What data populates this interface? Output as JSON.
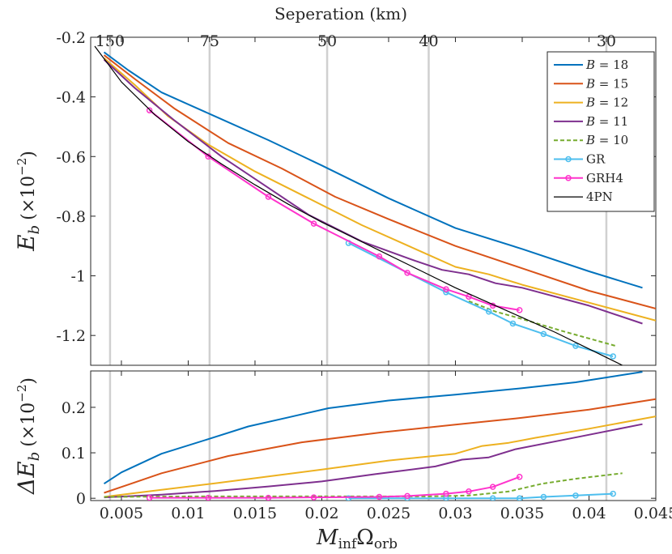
{
  "chart_data": {
    "type": "line",
    "title": "Seperation (km)",
    "top_axis": {
      "label": "Seperation (km)",
      "ticks": [
        {
          "label": "150",
          "x": 0.00415
        },
        {
          "label": "75",
          "x": 0.0116
        },
        {
          "label": "50",
          "x": 0.0204
        },
        {
          "label": "40",
          "x": 0.028
        },
        {
          "label": "30",
          "x": 0.0413
        }
      ]
    },
    "xlabel": "M_inf Ω_orb",
    "xlabel_main": "M",
    "xlabel_sub1": "inf",
    "xlabel_omega": "Ω",
    "xlabel_sub2": "orb",
    "xlim": [
      0.0027,
      0.045
    ],
    "xticks": [
      0.005,
      0.01,
      0.015,
      0.02,
      0.025,
      0.03,
      0.035,
      0.04,
      0.045
    ],
    "xtick_labels": [
      "0.005",
      "0.01",
      "0.015",
      "0.02",
      "0.025",
      "0.03",
      "0.035",
      "0.04",
      "0.045"
    ],
    "vertical_lines_x": [
      0.00415,
      0.0116,
      0.0204,
      0.028,
      0.0413
    ],
    "panels": [
      {
        "name": "top",
        "ylabel_main": "E",
        "ylabel_sub": "b",
        "ylabel_factor": "(×10",
        "ylabel_exp": "−2",
        "ylabel_close": ")",
        "ylim": [
          -1.3,
          -0.2
        ],
        "yticks": [
          -0.2,
          -0.4,
          -0.6,
          -0.8,
          -1,
          -1.2
        ],
        "ytick_labels": [
          "-0.2",
          "-0.4",
          "-0.6",
          "-0.8",
          "-1",
          "-1.2"
        ],
        "series": [
          {
            "name": "B = 18",
            "color": "#0072bd",
            "style": "solid",
            "x": [
              0.0037,
              0.0055,
              0.008,
              0.012,
              0.016,
              0.02,
              0.025,
              0.03,
              0.035,
              0.04,
              0.044
            ],
            "y": [
              -0.25,
              -0.31,
              -0.385,
              -0.465,
              -0.545,
              -0.63,
              -0.74,
              -0.84,
              -0.91,
              -0.985,
              -1.04
            ]
          },
          {
            "name": "B = 15",
            "color": "#d95319",
            "style": "solid",
            "x": [
              0.0037,
              0.006,
              0.009,
              0.013,
              0.017,
              0.021,
              0.025,
              0.03,
              0.035,
              0.04,
              0.045
            ],
            "y": [
              -0.26,
              -0.34,
              -0.44,
              -0.555,
              -0.64,
              -0.735,
              -0.81,
              -0.9,
              -0.975,
              -1.05,
              -1.11
            ]
          },
          {
            "name": "B = 12",
            "color": "#edb120",
            "style": "solid",
            "x": [
              0.0037,
              0.006,
              0.0085,
              0.0115,
              0.015,
              0.019,
              0.023,
              0.027,
              0.03,
              0.0325,
              0.035,
              0.04,
              0.045
            ],
            "y": [
              -0.27,
              -0.36,
              -0.465,
              -0.56,
              -0.65,
              -0.74,
              -0.83,
              -0.91,
              -0.97,
              -0.995,
              -1.03,
              -1.09,
              -1.15
            ]
          },
          {
            "name": "B = 11",
            "color": "#7e2f8e",
            "style": "solid",
            "x": [
              0.0037,
              0.006,
              0.009,
              0.0125,
              0.016,
              0.019,
              0.023,
              0.027,
              0.029,
              0.031,
              0.033,
              0.035,
              0.04,
              0.044
            ],
            "y": [
              -0.275,
              -0.37,
              -0.48,
              -0.6,
              -0.705,
              -0.795,
              -0.885,
              -0.95,
              -0.98,
              -0.995,
              -1.025,
              -1.04,
              -1.1,
              -1.16
            ]
          },
          {
            "name": "B = 10",
            "color": "#77ac30",
            "style": "dashed",
            "x": [
              0.031,
              0.033,
              0.035,
              0.038,
              0.042
            ],
            "y": [
              -1.085,
              -1.12,
              -1.145,
              -1.185,
              -1.235
            ]
          },
          {
            "name": "GR",
            "color": "#4dbeee",
            "style": "solid",
            "marker": "circle",
            "x": [
              0.022,
              0.0293,
              0.0325,
              0.0343,
              0.0366,
              0.039,
              0.0418
            ],
            "y": [
              -0.89,
              -1.055,
              -1.12,
              -1.16,
              -1.195,
              -1.235,
              -1.27
            ]
          },
          {
            "name": "GRH4",
            "color": "#ff33cc",
            "style": "solid",
            "marker": "circle",
            "x": [
              0.0071,
              0.0115,
              0.016,
              0.0194,
              0.0243,
              0.0264,
              0.0293,
              0.031,
              0.0328,
              0.0348
            ],
            "y": [
              -0.445,
              -0.6,
              -0.735,
              -0.825,
              -0.935,
              -0.99,
              -1.045,
              -1.07,
              -1.1,
              -1.115
            ]
          },
          {
            "name": "4PN",
            "color": "#000000",
            "style": "solid",
            "thin": true,
            "x": [
              0.003,
              0.005,
              0.0075,
              0.01,
              0.0125,
              0.015,
              0.0175,
              0.02,
              0.0225,
              0.025,
              0.0275,
              0.03,
              0.0325,
              0.035,
              0.0375,
              0.04,
              0.0425
            ],
            "y": [
              -0.23,
              -0.35,
              -0.46,
              -0.55,
              -0.625,
              -0.695,
              -0.76,
              -0.82,
              -0.875,
              -0.93,
              -0.985,
              -1.04,
              -1.09,
              -1.14,
              -1.19,
              -1.245,
              -1.3
            ]
          }
        ]
      },
      {
        "name": "bottom",
        "ylabel_main": "ΔE",
        "ylabel_sub": "b",
        "ylabel_factor": "(×10",
        "ylabel_exp": "−2",
        "ylabel_close": ")",
        "ylim": [
          -0.005,
          0.28
        ],
        "yticks": [
          0,
          0.1,
          0.2
        ],
        "ytick_labels": [
          "0",
          "0.1",
          "0.2"
        ],
        "series": [
          {
            "name": "B = 18",
            "color": "#0072bd",
            "style": "solid",
            "x": [
              0.0037,
              0.005,
              0.008,
              0.0115,
              0.0145,
              0.0175,
              0.0205,
              0.025,
              0.03,
              0.035,
              0.039,
              0.044
            ],
            "y": [
              0.032,
              0.057,
              0.098,
              0.13,
              0.158,
              0.178,
              0.198,
              0.215,
              0.228,
              0.242,
              0.255,
              0.278
            ]
          },
          {
            "name": "B = 15",
            "color": "#d95319",
            "style": "solid",
            "x": [
              0.0037,
              0.0055,
              0.008,
              0.013,
              0.0185,
              0.0245,
              0.03,
              0.035,
              0.04,
              0.045
            ],
            "y": [
              0.012,
              0.03,
              0.055,
              0.093,
              0.123,
              0.145,
              0.162,
              0.177,
              0.195,
              0.218
            ]
          },
          {
            "name": "B = 12",
            "color": "#edb120",
            "style": "solid",
            "x": [
              0.0037,
              0.007,
              0.012,
              0.016,
              0.02,
              0.025,
              0.03,
              0.032,
              0.034,
              0.036,
              0.04,
              0.045
            ],
            "y": [
              0.003,
              0.015,
              0.033,
              0.048,
              0.063,
              0.083,
              0.098,
              0.115,
              0.122,
              0.133,
              0.153,
              0.18
            ]
          },
          {
            "name": "B = 11",
            "color": "#7e2f8e",
            "style": "solid",
            "x": [
              0.0037,
              0.008,
              0.012,
              0.016,
              0.02,
              0.024,
              0.0285,
              0.0305,
              0.0325,
              0.0345,
              0.038,
              0.044
            ],
            "y": [
              0.002,
              0.008,
              0.016,
              0.026,
              0.037,
              0.053,
              0.07,
              0.085,
              0.09,
              0.108,
              0.128,
              0.163
            ]
          },
          {
            "name": "B = 10",
            "color": "#77ac30",
            "style": "dashed",
            "x": [
              0.0037,
              0.01,
              0.02,
              0.028,
              0.031,
              0.034,
              0.0365,
              0.039,
              0.0425
            ],
            "y": [
              0.003,
              0.004,
              0.004,
              0.004,
              0.006,
              0.015,
              0.032,
              0.043,
              0.055
            ]
          },
          {
            "name": "GR",
            "color": "#4dbeee",
            "style": "solid",
            "marker": "circle",
            "x": [
              0.022,
              0.0264,
              0.0293,
              0.0328,
              0.0348,
              0.0366,
              0.039,
              0.0418
            ],
            "y": [
              0.0,
              0.0,
              0.0,
              0.0,
              0.0,
              0.003,
              0.006,
              0.01
            ]
          },
          {
            "name": "GRH4",
            "color": "#ff33cc",
            "style": "solid",
            "marker": "circle",
            "x": [
              0.0071,
              0.0115,
              0.016,
              0.0194,
              0.0243,
              0.0264,
              0.0293,
              0.031,
              0.0328,
              0.0348
            ],
            "y": [
              0.001,
              0.001,
              0.001,
              0.002,
              0.003,
              0.005,
              0.01,
              0.015,
              0.025,
              0.047
            ]
          }
        ]
      }
    ],
    "legend": {
      "placement": "top-right",
      "entries": [
        {
          "label_var": "B",
          "label_eq": " = 18",
          "color": "#0072bd",
          "style": "solid"
        },
        {
          "label_var": "B",
          "label_eq": " = 15",
          "color": "#d95319",
          "style": "solid"
        },
        {
          "label_var": "B",
          "label_eq": " = 12",
          "color": "#edb120",
          "style": "solid"
        },
        {
          "label_var": "B",
          "label_eq": " = 11",
          "color": "#7e2f8e",
          "style": "solid"
        },
        {
          "label_var": "B",
          "label_eq": " = 10",
          "color": "#77ac30",
          "style": "dashed"
        },
        {
          "label_var": "",
          "label_eq": "GR",
          "color": "#4dbeee",
          "style": "solid",
          "marker": "circle"
        },
        {
          "label_var": "",
          "label_eq": "GRH4",
          "color": "#ff33cc",
          "style": "solid",
          "marker": "circle"
        },
        {
          "label_var": "",
          "label_eq": "4PN",
          "color": "#000000",
          "style": "solid",
          "thin": true
        }
      ]
    }
  }
}
